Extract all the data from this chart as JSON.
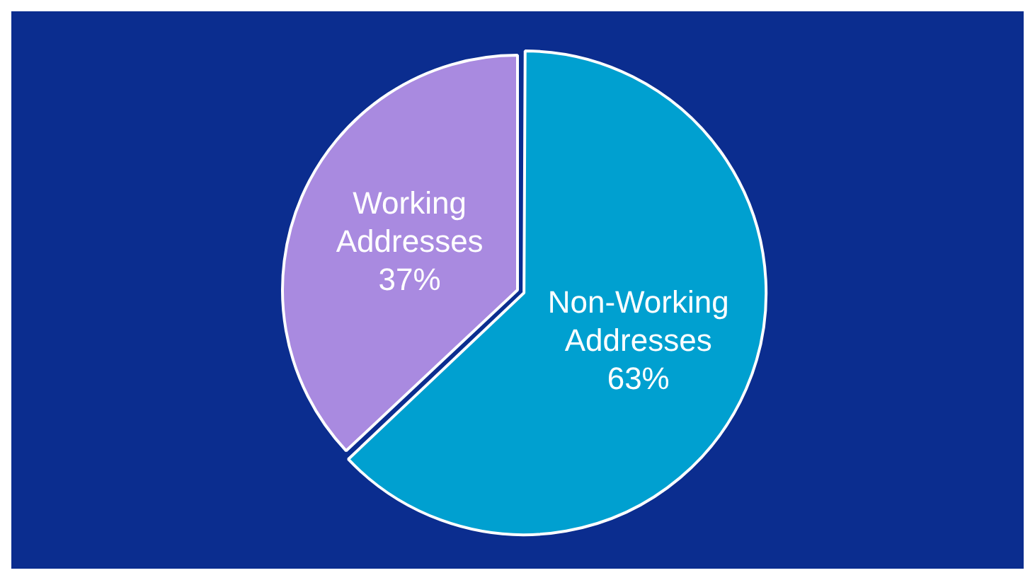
{
  "chart_data": {
    "type": "pie",
    "categories": [
      "Working Addresses",
      "Non-Working Addresses"
    ],
    "values": [
      37,
      63
    ],
    "colors": [
      "#a98ae0",
      "#00a0d0"
    ],
    "value_labels": [
      "37%",
      "63%"
    ],
    "legend": false
  }
}
